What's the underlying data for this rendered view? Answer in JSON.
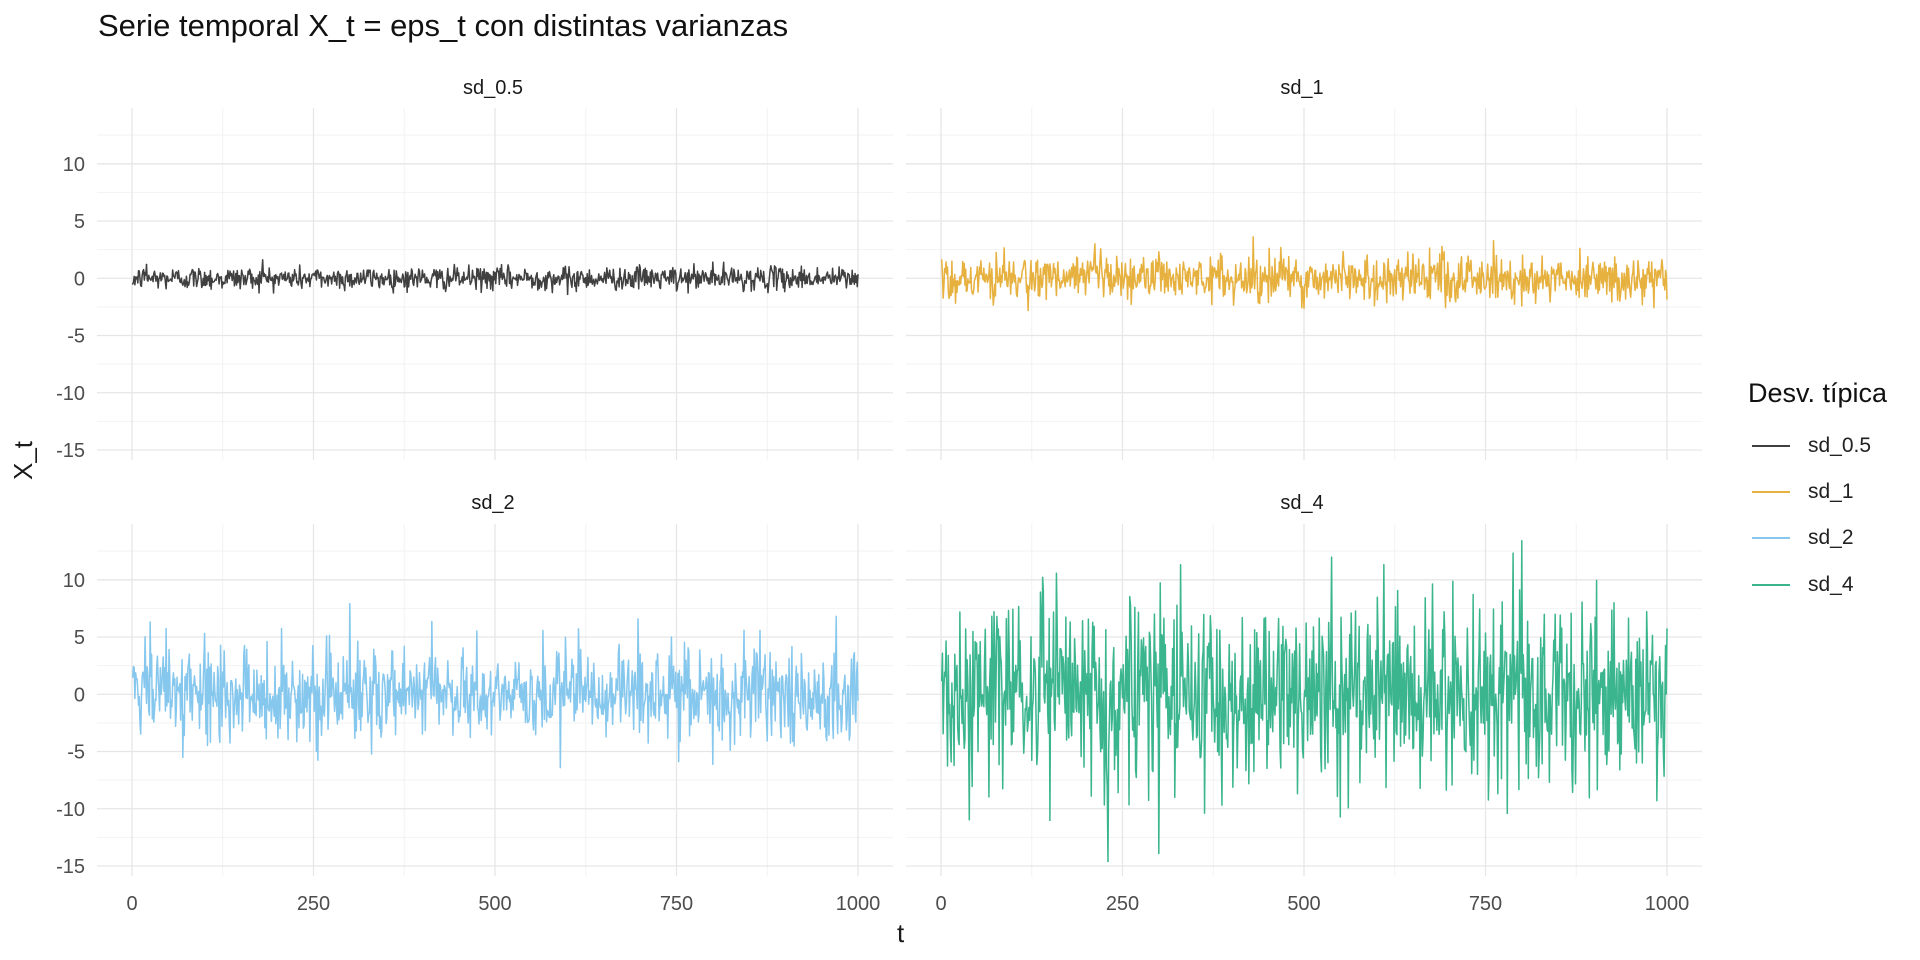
{
  "title": "Serie temporal X_t = eps_t con distintas varianzas",
  "xlabel": "t",
  "ylabel": "X_t",
  "legend": {
    "title": "Desv. típica",
    "items": [
      {
        "label": "sd_0.5",
        "color": "#404040"
      },
      {
        "label": "sd_1",
        "color": "#E7B13F"
      },
      {
        "label": "sd_2",
        "color": "#86C7EE"
      },
      {
        "label": "sd_4",
        "color": "#3AB58D"
      }
    ]
  },
  "chart_data": {
    "type": "line",
    "facets": [
      "sd_0.5",
      "sd_1",
      "sd_2",
      "sd_4"
    ],
    "x_range": [
      1,
      1000
    ],
    "xlim": [
      0,
      1000
    ],
    "ylim": [
      -15,
      14
    ],
    "x_ticks": [
      "0",
      "250",
      "500",
      "750",
      "1000"
    ],
    "y_ticks": [
      "10",
      "5",
      "0",
      "-5",
      "-10",
      "-15"
    ],
    "grid": true,
    "legend_position": "right",
    "series": [
      {
        "name": "sd_0.5",
        "sd": 0.5,
        "min": -1.4,
        "max": 1.6,
        "color": "#404040",
        "x": [
          1,
          15,
          20,
          100,
          180,
          250,
          420,
          600,
          700,
          750,
          800,
          1000
        ],
        "y": [
          -0.5,
          0.6,
          1.2,
          0.5,
          1.6,
          0.3,
          -0.8,
          -1.4,
          0.9,
          -1.1,
          1.4,
          0.3
        ]
      },
      {
        "name": "sd_1",
        "sd": 1,
        "min": -2.8,
        "max": 3.6,
        "color": "#E7B13F",
        "x": [
          1,
          120,
          300,
          430,
          500,
          650,
          800,
          880,
          1000
        ],
        "y": [
          1.6,
          -2.8,
          2.3,
          3.6,
          -2.6,
          2.1,
          -2.4,
          2.6,
          -1.8
        ]
      },
      {
        "name": "sd_2",
        "sd": 2,
        "min": -6.4,
        "max": 7.9,
        "color": "#86C7EE",
        "x": [
          1,
          25,
          70,
          100,
          300,
          330,
          590,
          615,
          800,
          970,
          1000
        ],
        "y": [
          1.5,
          6.3,
          -5.5,
          5.3,
          7.9,
          -5.2,
          -6.4,
          5.7,
          -6.1,
          6.8,
          -0.5
        ]
      },
      {
        "name": "sd_4",
        "sd": 4,
        "min": -14.6,
        "max": 13.4,
        "color": "#3AB58D",
        "x": [
          1,
          140,
          150,
          230,
          300,
          330,
          550,
          610,
          800,
          780,
          1000
        ],
        "y": [
          1.2,
          10.2,
          -11.0,
          -14.6,
          -13.9,
          11.3,
          -10.7,
          11.3,
          13.4,
          -10.4,
          5.7
        ]
      }
    ]
  }
}
